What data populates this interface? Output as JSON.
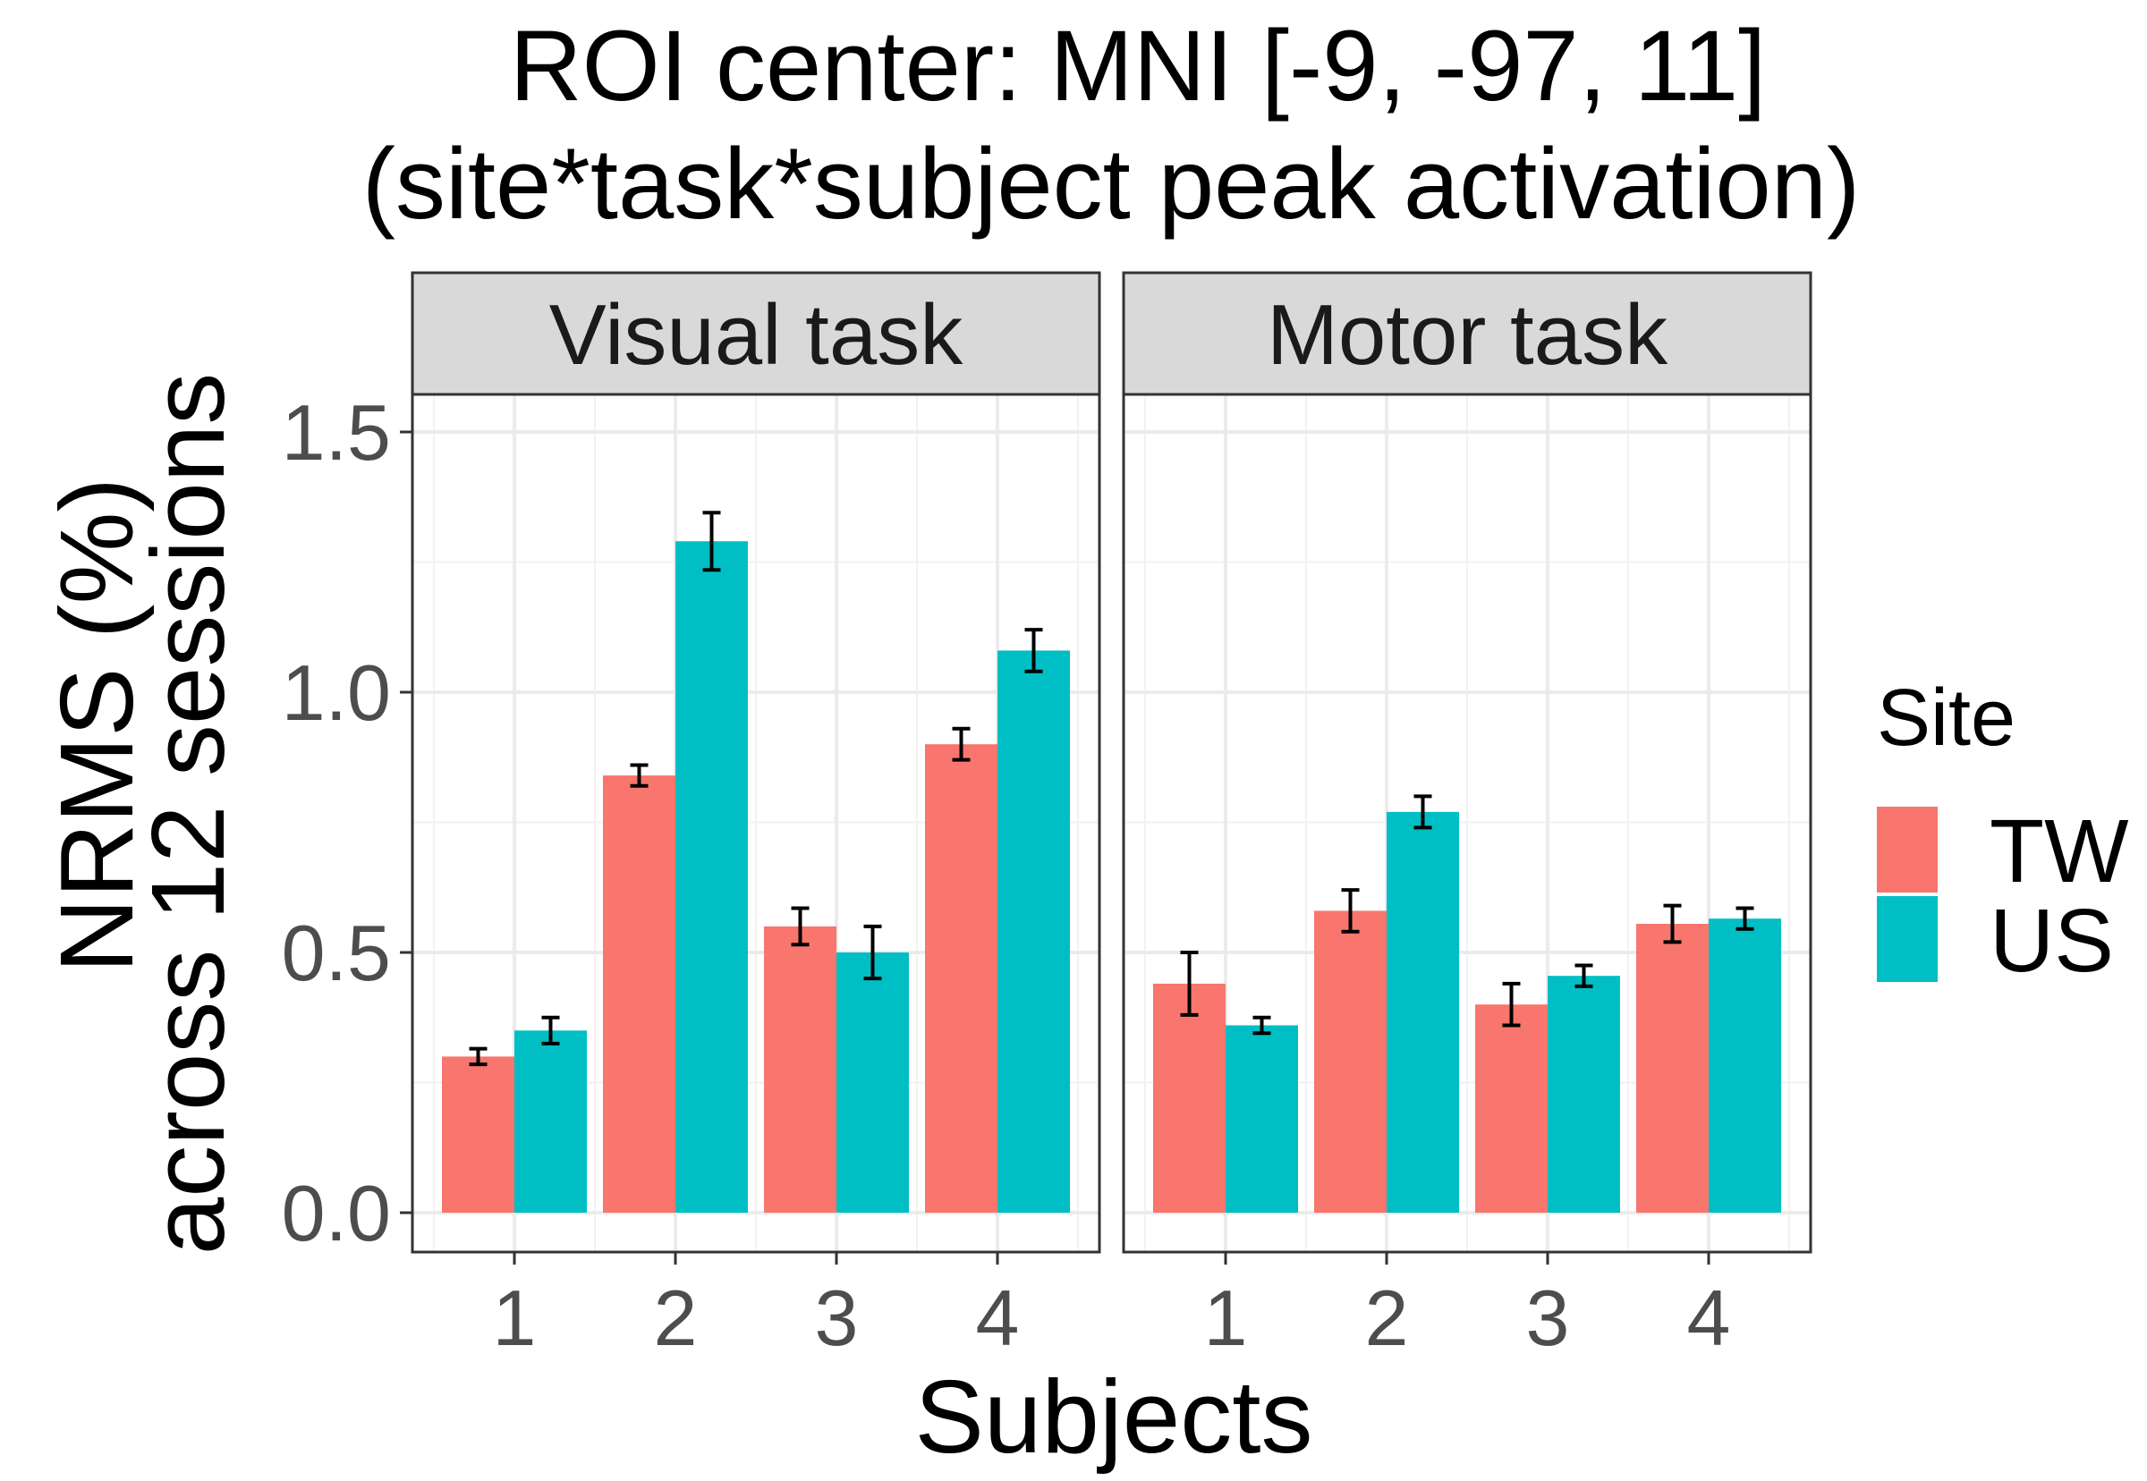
{
  "chart_data": {
    "type": "bar",
    "title": "ROI center: MNI [-9, -97, 11]",
    "subtitle": "(site*task*subject peak activation)",
    "xlabel": "Subjects",
    "ylabel": "NRMS (%)",
    "ylabel_line2": "across 12 sessions",
    "ylim": [
      0,
      1.5
    ],
    "yticks": [
      "0.0",
      "0.5",
      "1.0",
      "1.5"
    ],
    "grid": true,
    "categories": [
      "1",
      "2",
      "3",
      "4"
    ],
    "legend": {
      "title": "Site",
      "placement": "right",
      "entries": [
        {
          "label": "TW",
          "color": "#F8766D"
        },
        {
          "label": "US",
          "color": "#00BFC4"
        }
      ]
    },
    "panels": [
      {
        "label": "Visual task",
        "series": [
          {
            "name": "TW",
            "color": "#F8766D",
            "values": [
              0.3,
              0.84,
              0.55,
              0.9
            ],
            "error": [
              0.015,
              0.02,
              0.035,
              0.03
            ]
          },
          {
            "name": "US",
            "color": "#00BFC4",
            "values": [
              0.35,
              1.29,
              0.5,
              1.08
            ],
            "error": [
              0.025,
              0.055,
              0.05,
              0.04
            ]
          }
        ]
      },
      {
        "label": "Motor task",
        "series": [
          {
            "name": "TW",
            "color": "#F8766D",
            "values": [
              0.44,
              0.58,
              0.4,
              0.555
            ],
            "error": [
              0.06,
              0.04,
              0.04,
              0.035
            ]
          },
          {
            "name": "US",
            "color": "#00BFC4",
            "values": [
              0.36,
              0.77,
              0.455,
              0.565
            ],
            "error": [
              0.015,
              0.03,
              0.02,
              0.02
            ]
          }
        ]
      }
    ]
  }
}
